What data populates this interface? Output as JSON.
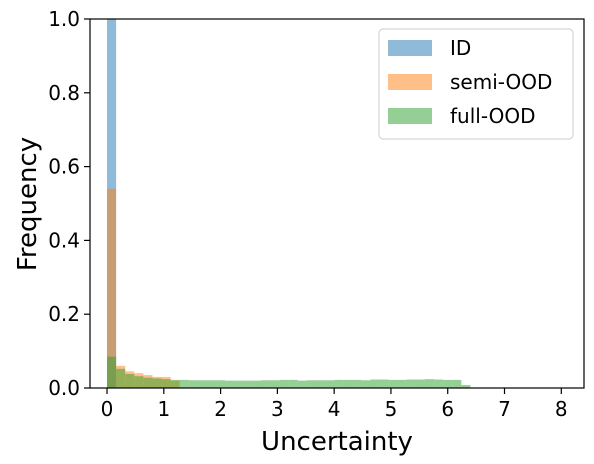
{
  "chart_data": {
    "type": "bar",
    "title": "",
    "xlabel": "Uncertainty",
    "ylabel": "Frequency",
    "xlim": [
      -0.3,
      8.4
    ],
    "ylim": [
      0,
      1.0
    ],
    "xticks": [
      0,
      1,
      2,
      3,
      4,
      5,
      6,
      7,
      8
    ],
    "xtick_labels": [
      "0",
      "1",
      "2",
      "3",
      "4",
      "5",
      "6",
      "7",
      "8"
    ],
    "yticks": [
      0.0,
      0.2,
      0.4,
      0.6,
      0.8,
      1.0
    ],
    "ytick_labels": [
      "0.0",
      "0.2",
      "0.4",
      "0.6",
      "0.8",
      "1.0"
    ],
    "grid": false,
    "legend_position": "top-right",
    "bin_width": 0.16,
    "series": [
      {
        "name": "ID",
        "color": "#1f77b4",
        "bins": [
          [
            0.0,
            1.0
          ]
        ]
      },
      {
        "name": "semi-OOD",
        "color": "#ff7f0e",
        "bins": [
          [
            0.0,
            0.54
          ],
          [
            0.16,
            0.06
          ],
          [
            0.32,
            0.045
          ],
          [
            0.48,
            0.04
          ],
          [
            0.64,
            0.035
          ],
          [
            0.8,
            0.03
          ],
          [
            0.96,
            0.03
          ],
          [
            1.12,
            0.02
          ]
        ]
      },
      {
        "name": "full-OOD",
        "color": "#2ca02c",
        "bins": [
          [
            0.0,
            0.085
          ],
          [
            0.16,
            0.052
          ],
          [
            0.32,
            0.038
          ],
          [
            0.48,
            0.032
          ],
          [
            0.64,
            0.028
          ],
          [
            0.8,
            0.026
          ],
          [
            0.96,
            0.024
          ],
          [
            1.12,
            0.022
          ],
          [
            1.28,
            0.022
          ],
          [
            1.44,
            0.021
          ],
          [
            1.6,
            0.021
          ],
          [
            1.76,
            0.021
          ],
          [
            1.92,
            0.021
          ],
          [
            2.08,
            0.02
          ],
          [
            2.24,
            0.02
          ],
          [
            2.4,
            0.02
          ],
          [
            2.56,
            0.02
          ],
          [
            2.72,
            0.021
          ],
          [
            2.88,
            0.021
          ],
          [
            3.04,
            0.022
          ],
          [
            3.2,
            0.022
          ],
          [
            3.36,
            0.02
          ],
          [
            3.52,
            0.021
          ],
          [
            3.68,
            0.021
          ],
          [
            3.84,
            0.021
          ],
          [
            4.0,
            0.022
          ],
          [
            4.16,
            0.022
          ],
          [
            4.32,
            0.022
          ],
          [
            4.48,
            0.021
          ],
          [
            4.64,
            0.023
          ],
          [
            4.8,
            0.023
          ],
          [
            4.96,
            0.022
          ],
          [
            5.12,
            0.022
          ],
          [
            5.28,
            0.023
          ],
          [
            5.44,
            0.023
          ],
          [
            5.6,
            0.024
          ],
          [
            5.76,
            0.023
          ],
          [
            5.92,
            0.022
          ],
          [
            6.08,
            0.022
          ],
          [
            6.24,
            0.008
          ]
        ]
      }
    ]
  }
}
